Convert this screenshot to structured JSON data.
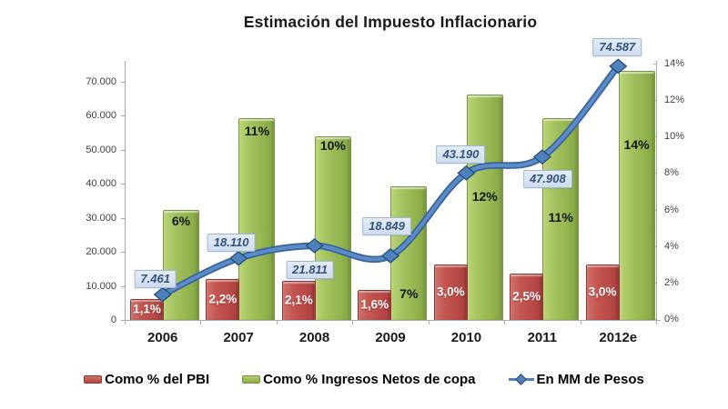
{
  "title": "Estimación del Impuesto Inflacionario",
  "chart_data": {
    "type": "bar",
    "subtype": "combo-bar-line",
    "title": "Estimación del Impuesto Inflacionario",
    "categories": [
      "2006",
      "2007",
      "2008",
      "2009",
      "2010",
      "2011",
      "2012e"
    ],
    "series": [
      {
        "name": "Como % del PBI",
        "type": "bar",
        "axis": "right",
        "unit": "%",
        "color": "#C0504D",
        "values": [
          1.1,
          2.2,
          2.1,
          1.6,
          3.0,
          2.5,
          3.0
        ],
        "labels": [
          "1,1%",
          "2,2%",
          "2,1%",
          "1,6%",
          "3,0%",
          "2,5%",
          "3,0%"
        ]
      },
      {
        "name": "Como % Ingresos Netos de copa",
        "type": "bar",
        "axis": "right",
        "unit": "%",
        "color": "#9BBB59",
        "values": [
          6,
          11,
          10,
          7,
          12,
          11,
          14
        ],
        "labels": [
          "6%",
          "11%",
          "10%",
          "7%",
          "12%",
          "11%",
          "14%"
        ]
      },
      {
        "name": "En MM de Pesos",
        "type": "line",
        "axis": "left",
        "unit": "MM de Pesos",
        "color": "#4F81BD",
        "values": [
          7461,
          18110,
          21811,
          18849,
          43190,
          47908,
          74587
        ],
        "labels": [
          "7.461",
          "18.110",
          "21.811",
          "18.849",
          "43.190",
          "47.908",
          "74.587"
        ]
      }
    ],
    "left_axis": {
      "min": 0,
      "max": 70000,
      "tick_step": 10000,
      "ticks": [
        {
          "v": 0,
          "label": "0"
        },
        {
          "v": 10000,
          "label": "10.000"
        },
        {
          "v": 20000,
          "label": "20.000"
        },
        {
          "v": 30000,
          "label": "30.000"
        },
        {
          "v": 40000,
          "label": "40.000"
        },
        {
          "v": 50000,
          "label": "50.000"
        },
        {
          "v": 60000,
          "label": "60.000"
        },
        {
          "v": 70000,
          "label": "70.000"
        }
      ]
    },
    "right_axis": {
      "min": 0,
      "max": 14,
      "tick_step": 2,
      "ticks": [
        {
          "v": 0,
          "label": "0%"
        },
        {
          "v": 2,
          "label": "2%"
        },
        {
          "v": 4,
          "label": "4%"
        },
        {
          "v": 6,
          "label": "6%"
        },
        {
          "v": 8,
          "label": "8%"
        },
        {
          "v": 10,
          "label": "10%"
        },
        {
          "v": 12,
          "label": "12%"
        },
        {
          "v": 14,
          "label": "14%"
        }
      ]
    },
    "legend_position": "bottom",
    "grid": false
  },
  "colors": {
    "bar_red": "#C0504D",
    "bar_green": "#9BBB59",
    "line_blue": "#4F81BD",
    "line_blue_dark": "#37649E",
    "line_blue_light": "#5C8BC6",
    "label_box_bg": "#D9E2F1",
    "label_box_border": "#9FB6D4",
    "label_box_text": "#31537D",
    "axis_gray": "#ABABAB"
  }
}
